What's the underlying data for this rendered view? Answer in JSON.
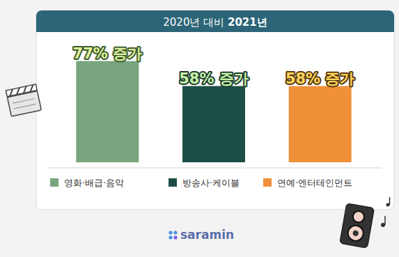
{
  "chart_data": {
    "type": "bar",
    "title": "2020년 대비 2021년",
    "categories": [
      "영화·배급·음악",
      "방송사·케이블",
      "연예·엔터테인먼트"
    ],
    "values": [
      77,
      58,
      58
    ],
    "value_labels": [
      "77% 증가",
      "58% 증가",
      "58% 증가"
    ],
    "colors": [
      "#78a57e",
      "#1d4e45",
      "#f0913a"
    ],
    "ylim": [
      0,
      80
    ],
    "data_labels": true,
    "tick_labels": false,
    "legend": "bottom",
    "brand": "saramin"
  }
}
